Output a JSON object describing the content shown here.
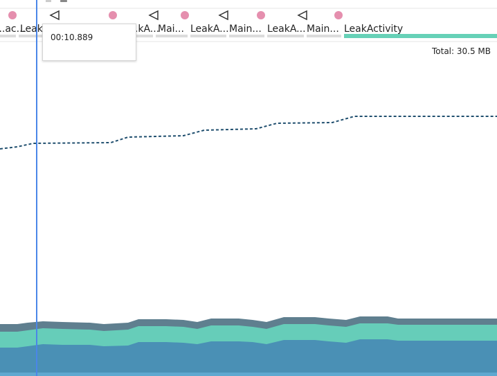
{
  "timeline": {
    "activities": [
      {
        "label": "...ac...",
        "active": false
      },
      {
        "label": "Leak...",
        "active": false
      },
      {
        "label": "...kA...",
        "active": false
      },
      {
        "label": "Mai...",
        "active": false
      },
      {
        "label": "LeakA...",
        "active": false
      },
      {
        "label": "Main...",
        "active": false
      },
      {
        "label": "LeakA...",
        "active": false
      },
      {
        "label": "Main...",
        "active": false
      },
      {
        "label": "LeakActivity",
        "active": true
      }
    ],
    "event_icons": [
      "touch-dot-icon",
      "back-triangle-icon"
    ]
  },
  "tooltip": {
    "time": "00:10.889"
  },
  "memory": {
    "total_label": "Total: 30.5 MB",
    "colors": {
      "dashed_line": "#1f4e6e",
      "layer_top": "#5f7f8f",
      "layer_mid": "#66cdb9",
      "layer_bottom": "#4a90b5",
      "active_bar": "#66d1b7",
      "inactive_bar": "#dcdcdc",
      "cursor": "#4a86e8",
      "dot": "#e58fae"
    }
  }
}
